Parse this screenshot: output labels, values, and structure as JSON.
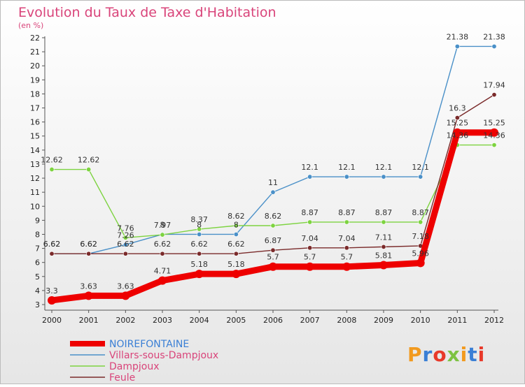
{
  "chart_data": {
    "type": "line",
    "title": "Evolution du Taux de Taxe d'Habitation",
    "subtitle": "(en %)",
    "x": [
      "2000",
      "2001",
      "2002",
      "2003",
      "2004",
      "2005",
      "2006",
      "2007",
      "2008",
      "2009",
      "2010",
      "2011",
      "2012"
    ],
    "ylim": [
      3,
      22
    ],
    "yticks": [
      3,
      4,
      5,
      6,
      7,
      8,
      9,
      10,
      11,
      12,
      13,
      14,
      15,
      16,
      17,
      18,
      19,
      20,
      21,
      22
    ],
    "grid": false,
    "legend_position": "bottom-left",
    "series": [
      {
        "name": "Villars-sous-Dampjoux",
        "color": "#4a90c8",
        "values": [
          6.62,
          6.62,
          7.26,
          8,
          8,
          8,
          11,
          12.1,
          12.1,
          12.1,
          12.1,
          21.38,
          21.38
        ],
        "labels": [
          "6.62",
          "6.62",
          "7.26",
          "8",
          "8",
          "8",
          "11",
          "12.1",
          "12.1",
          "12.1",
          "12.1",
          "21.38",
          "21.38"
        ]
      },
      {
        "name": "Dampjoux",
        "color": "#7dd340",
        "values": [
          12.62,
          12.62,
          7.76,
          7.97,
          8.37,
          8.62,
          8.62,
          8.87,
          8.87,
          8.87,
          8.87,
          14.36,
          14.36
        ],
        "labels": [
          "12.62",
          "12.62",
          "7.76",
          "7.97",
          "8.37",
          "8.62",
          "8.62",
          "8.87",
          "8.87",
          "8.87",
          "8.87",
          "14.36",
          "14.36"
        ]
      },
      {
        "name": "Feule",
        "color": "#7a2a2a",
        "values": [
          6.62,
          6.62,
          6.62,
          6.62,
          6.62,
          6.62,
          6.87,
          7.04,
          7.04,
          7.11,
          7.18,
          16.3,
          17.94
        ],
        "labels": [
          "6.62",
          "6.62",
          "6.62",
          "6.62",
          "6.62",
          "6.62",
          "6.87",
          "7.04",
          "7.04",
          "7.11",
          "7.18",
          "16.3",
          "17.94"
        ]
      },
      {
        "name": "NOIREFONTAINE",
        "color": "#ee0000",
        "values": [
          3.3,
          3.63,
          3.63,
          4.71,
          5.18,
          5.18,
          5.7,
          5.7,
          5.7,
          5.81,
          5.96,
          15.25,
          15.25
        ],
        "labels": [
          "3.3",
          "3.63",
          "3.63",
          "4.71",
          "5.18",
          "5.18",
          "5.7",
          "5.7",
          "5.7",
          "5.81",
          "5.96",
          "15.25",
          "15.25"
        ]
      }
    ],
    "legend": [
      {
        "name": "NOIREFONTAINE",
        "color": "#ee0000",
        "text_color": "#3a7fd5"
      },
      {
        "name": "Villars-sous-Dampjoux",
        "color": "#4a90c8",
        "text_color": "#d9447a"
      },
      {
        "name": "Dampjoux",
        "color": "#7dd340",
        "text_color": "#d9447a"
      },
      {
        "name": "Feule",
        "color": "#7a2a2a",
        "text_color": "#d9447a"
      }
    ],
    "logo": {
      "text": "Proxiti",
      "letter_colors": [
        "#f29a1f",
        "#3a7fd5",
        "#e8392a",
        "#7dc242",
        "#f29a1f",
        "#3a7fd5",
        "#e8392a"
      ]
    }
  }
}
